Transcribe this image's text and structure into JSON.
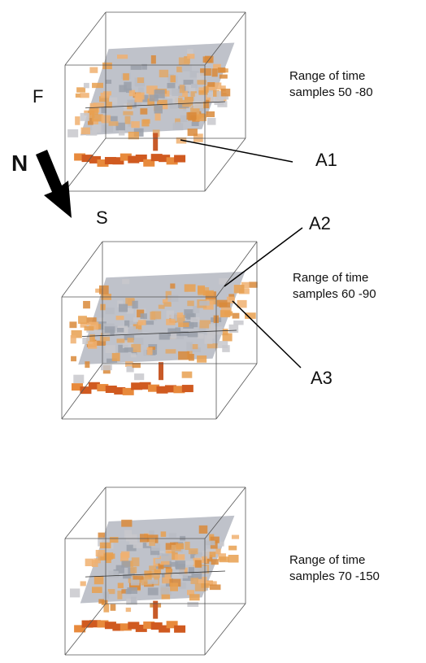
{
  "panels": [
    {
      "caption": [
        "Range of time",
        "samples 50 -80"
      ]
    },
    {
      "caption": [
        "Range of time",
        "samples 60 -90"
      ]
    },
    {
      "caption": [
        "Range of time",
        "samples 70 -150"
      ]
    }
  ],
  "orientation": {
    "front": "F",
    "north": "N",
    "south": "S"
  },
  "annotations": [
    "A1",
    "A2",
    "A3"
  ]
}
